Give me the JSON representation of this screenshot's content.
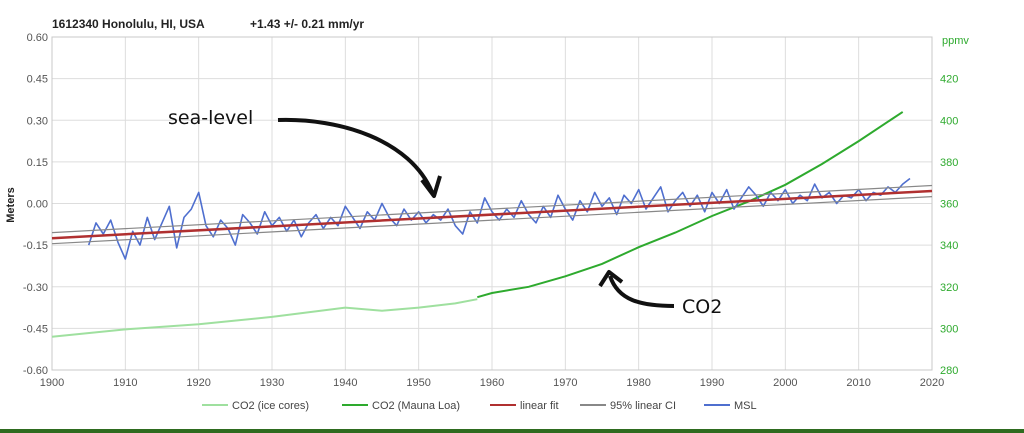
{
  "chart_data": {
    "type": "line",
    "title": "1612340 Honolulu, HI, USA",
    "subtitle": "+1.43 +/- 0.21 mm/yr",
    "xlabel": "",
    "ylabel": "Meters",
    "y2label": "ppmv",
    "xlim": [
      1900,
      2020
    ],
    "ylim": [
      -0.6,
      0.6
    ],
    "y2lim": [
      280,
      440
    ],
    "x_ticks": [
      1900,
      1910,
      1920,
      1930,
      1940,
      1950,
      1960,
      1970,
      1980,
      1990,
      2000,
      2010,
      2020
    ],
    "y_ticks": [
      "0.60",
      "0.45",
      "0.30",
      "0.15",
      "0.00",
      "-0.15",
      "-0.30",
      "-0.45",
      "-0.60"
    ],
    "y2_ticks": [
      "420",
      "400",
      "380",
      "360",
      "340",
      "320",
      "300",
      "280"
    ],
    "grid": true,
    "legend_position": "bottom",
    "series": [
      {
        "name": "CO2 (ice cores)",
        "axis": "right",
        "color": "#9fe09f",
        "x": [
          1900,
          1910,
          1920,
          1930,
          1940,
          1945,
          1950,
          1955,
          1958
        ],
        "values": [
          296,
          299.5,
          302,
          305.5,
          310,
          308.5,
          310,
          312,
          314
        ]
      },
      {
        "name": "CO2 (Mauna Loa)",
        "axis": "right",
        "color": "#2eaa2e",
        "x": [
          1958,
          1960,
          1965,
          1970,
          1975,
          1980,
          1985,
          1990,
          1995,
          2000,
          2005,
          2010,
          2016
        ],
        "values": [
          315,
          317,
          320,
          325,
          331,
          339,
          346,
          354,
          361,
          369,
          379,
          390,
          404
        ]
      },
      {
        "name": "linear fit",
        "axis": "left",
        "color": "#b03030",
        "x": [
          1900,
          2020
        ],
        "values": [
          -0.125,
          0.045
        ]
      },
      {
        "name": "95% linear CI",
        "axis": "left",
        "color": "#888888",
        "x": [
          1900,
          2020
        ],
        "values": [
          -0.105,
          0.065
        ],
        "lower": [
          -0.145,
          0.025
        ]
      },
      {
        "name": "MSL",
        "axis": "left",
        "color": "#4f6fcf",
        "x": [
          1905,
          1906,
          1907,
          1908,
          1909,
          1910,
          1911,
          1912,
          1913,
          1914,
          1915,
          1916,
          1917,
          1918,
          1919,
          1920,
          1921,
          1922,
          1923,
          1924,
          1925,
          1926,
          1927,
          1928,
          1929,
          1930,
          1931,
          1932,
          1933,
          1934,
          1935,
          1936,
          1937,
          1938,
          1939,
          1940,
          1941,
          1942,
          1943,
          1944,
          1945,
          1946,
          1947,
          1948,
          1949,
          1950,
          1951,
          1952,
          1953,
          1954,
          1955,
          1956,
          1957,
          1958,
          1959,
          1960,
          1961,
          1962,
          1963,
          1964,
          1965,
          1966,
          1967,
          1968,
          1969,
          1970,
          1971,
          1972,
          1973,
          1974,
          1975,
          1976,
          1977,
          1978,
          1979,
          1980,
          1981,
          1982,
          1983,
          1984,
          1985,
          1986,
          1987,
          1988,
          1989,
          1990,
          1991,
          1992,
          1993,
          1994,
          1995,
          1996,
          1997,
          1998,
          1999,
          2000,
          2001,
          2002,
          2003,
          2004,
          2005,
          2006,
          2007,
          2008,
          2009,
          2010,
          2011,
          2012,
          2013,
          2014,
          2015,
          2016,
          2017
        ],
        "values": [
          -0.15,
          -0.07,
          -0.11,
          -0.06,
          -0.14,
          -0.2,
          -0.1,
          -0.15,
          -0.05,
          -0.13,
          -0.07,
          -0.01,
          -0.16,
          -0.05,
          -0.02,
          0.04,
          -0.08,
          -0.12,
          -0.06,
          -0.09,
          -0.15,
          -0.04,
          -0.07,
          -0.11,
          -0.03,
          -0.08,
          -0.05,
          -0.1,
          -0.06,
          -0.12,
          -0.07,
          -0.04,
          -0.09,
          -0.05,
          -0.08,
          -0.01,
          -0.05,
          -0.09,
          -0.03,
          -0.06,
          0.0,
          -0.05,
          -0.08,
          -0.02,
          -0.06,
          -0.03,
          -0.07,
          -0.04,
          -0.06,
          -0.02,
          -0.08,
          -0.11,
          -0.03,
          -0.07,
          0.02,
          -0.03,
          -0.06,
          -0.02,
          -0.05,
          0.01,
          -0.04,
          -0.07,
          -0.01,
          -0.05,
          0.03,
          -0.02,
          -0.06,
          0.01,
          -0.03,
          0.04,
          -0.01,
          0.02,
          -0.04,
          0.03,
          0.0,
          0.05,
          -0.02,
          0.02,
          0.06,
          -0.03,
          0.01,
          0.04,
          -0.01,
          0.03,
          -0.03,
          0.04,
          0.0,
          0.05,
          -0.02,
          0.02,
          0.06,
          0.03,
          -0.01,
          0.04,
          0.01,
          0.05,
          0.0,
          0.03,
          0.01,
          0.07,
          0.02,
          0.04,
          0.0,
          0.03,
          0.02,
          0.05,
          0.01,
          0.04,
          0.03,
          0.06,
          0.04,
          0.07,
          0.09
        ]
      }
    ],
    "annotations": [
      {
        "text": "sea-level",
        "points_to": "MSL"
      },
      {
        "text": "CO2",
        "points_to": "CO2 (Mauna Loa)"
      }
    ]
  },
  "colors": {
    "right_axis": "#2eaa2e",
    "grid": "#dddddd",
    "bottom_bar": "#2e6b1f"
  }
}
